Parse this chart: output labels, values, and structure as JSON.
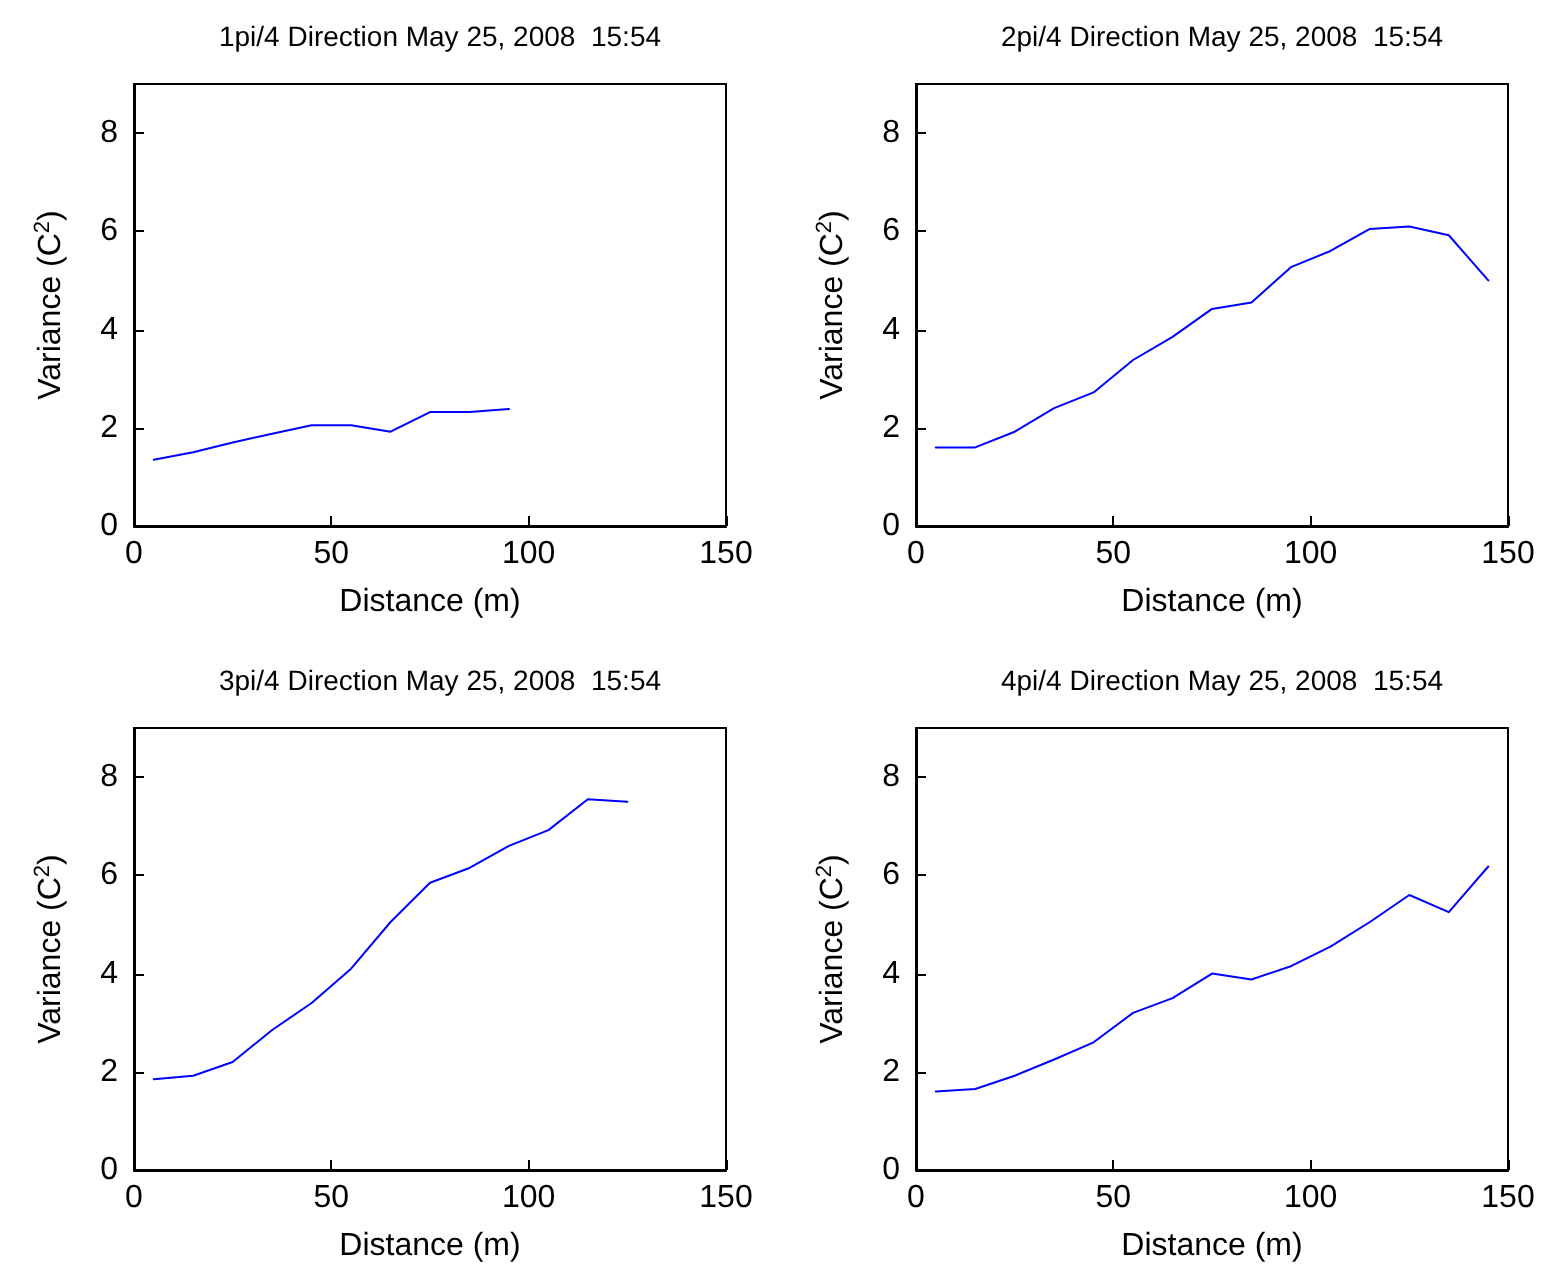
{
  "chart_data": [
    {
      "type": "line",
      "title": "1pi/4 Direction May 25, 2008  15:54",
      "xlabel": "Distance (m)",
      "ylabel": "Variance (C$^{2}$)",
      "x": [
        5,
        15,
        25,
        35,
        45,
        55,
        65,
        75,
        85,
        95
      ],
      "series": [
        {
          "color": "#0000ff",
          "values": [
            1.35,
            1.5,
            1.7,
            1.88,
            2.05,
            2.05,
            1.92,
            2.32,
            2.32,
            2.38
          ]
        }
      ],
      "xlim": [
        0,
        150
      ],
      "xticks": [
        0,
        50,
        100,
        150
      ],
      "ylim": [
        0,
        9
      ],
      "yticks": [
        0,
        2,
        4,
        6,
        8
      ],
      "grid": false,
      "marker": "none",
      "line_style": "solid"
    },
    {
      "type": "line",
      "title": "2pi/4 Direction May 25, 2008  15:54",
      "xlabel": "Distance (m)",
      "ylabel": "Variance (C$^{2}$)",
      "x": [
        5,
        15,
        25,
        35,
        45,
        55,
        65,
        75,
        85,
        95,
        105,
        115,
        125,
        135,
        145
      ],
      "series": [
        {
          "color": "#0000ff",
          "values": [
            1.6,
            1.6,
            1.92,
            2.4,
            2.72,
            3.38,
            3.85,
            4.42,
            4.55,
            5.27,
            5.6,
            6.05,
            6.1,
            5.92,
            5.0
          ]
        }
      ],
      "xlim": [
        0,
        150
      ],
      "xticks": [
        0,
        50,
        100,
        150
      ],
      "ylim": [
        0,
        9
      ],
      "yticks": [
        0,
        2,
        4,
        6,
        8
      ],
      "grid": false,
      "marker": "none",
      "line_style": "solid"
    },
    {
      "type": "line",
      "title": "3pi/4 Direction May 25, 2008  15:54",
      "xlabel": "Distance (m)",
      "ylabel": "Variance (C$^{2}$)",
      "x": [
        5,
        15,
        25,
        35,
        45,
        55,
        65,
        75,
        85,
        95,
        105,
        115,
        125
      ],
      "series": [
        {
          "color": "#0000ff",
          "values": [
            1.85,
            1.92,
            2.2,
            2.85,
            3.4,
            4.1,
            5.05,
            5.85,
            6.15,
            6.6,
            6.92,
            7.55,
            7.5
          ]
        }
      ],
      "xlim": [
        0,
        150
      ],
      "xticks": [
        0,
        50,
        100,
        150
      ],
      "ylim": [
        0,
        9
      ],
      "yticks": [
        0,
        2,
        4,
        6,
        8
      ],
      "grid": false,
      "marker": "none",
      "line_style": "solid"
    },
    {
      "type": "line",
      "title": "4pi/4 Direction May 25, 2008  15:54",
      "xlabel": "Distance (m)",
      "ylabel": "Variance (C$^{2}$)",
      "x": [
        5,
        15,
        25,
        35,
        45,
        55,
        65,
        75,
        85,
        95,
        105,
        115,
        125,
        135,
        145
      ],
      "series": [
        {
          "color": "#0000ff",
          "values": [
            1.6,
            1.65,
            1.92,
            2.25,
            2.6,
            3.2,
            3.5,
            4.0,
            3.88,
            4.15,
            4.55,
            5.05,
            5.6,
            5.25,
            6.18
          ]
        }
      ],
      "xlim": [
        0,
        150
      ],
      "xticks": [
        0,
        50,
        100,
        150
      ],
      "ylim": [
        0,
        9
      ],
      "yticks": [
        0,
        2,
        4,
        6,
        8
      ],
      "grid": false,
      "marker": "none",
      "line_style": "solid"
    }
  ]
}
